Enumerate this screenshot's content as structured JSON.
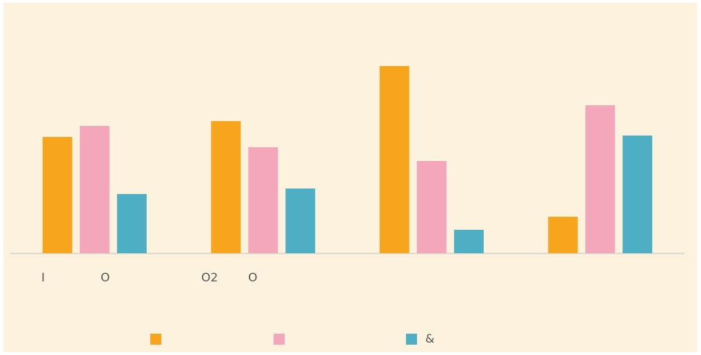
{
  "chart_data": {
    "type": "bar",
    "categories": [
      "I",
      "O",
      "O2",
      "O"
    ],
    "series": [
      {
        "name": null,
        "color": "#f7a51c",
        "values": [
          169,
          192,
          272,
          53
        ]
      },
      {
        "name": null,
        "color": "#f4a7bb",
        "values": [
          185,
          154,
          134,
          215
        ]
      },
      {
        "name": "&",
        "color": "#4daec4",
        "values": [
          86,
          94,
          34,
          171
        ]
      }
    ],
    "ylim": [
      0,
      300
    ]
  }
}
